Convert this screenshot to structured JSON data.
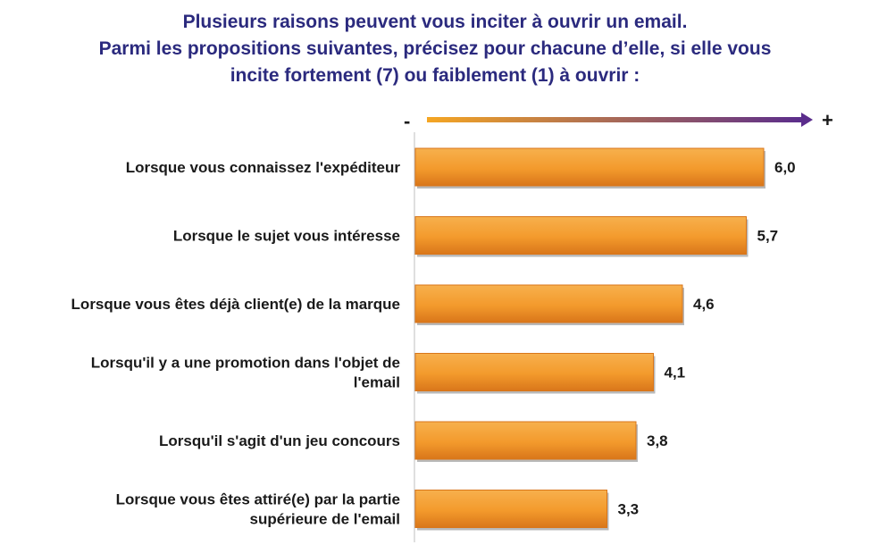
{
  "title_lines": [
    "Plusieurs raisons peuvent vous inciter à ouvrir un email.",
    "Parmi les propositions suivantes, précisez pour chacune d’elle, si elle vous",
    "incite fortement (7) ou faiblement (1) à ouvrir :"
  ],
  "scale": {
    "low": "-",
    "high": "+"
  },
  "colors": {
    "title": "#2b2a7e",
    "bar": "#f39a2c",
    "bar_dark": "#d9761a",
    "arrow_start": "#f5a623",
    "arrow_end": "#5b2d8c"
  },
  "chart_data": {
    "type": "bar",
    "orientation": "horizontal",
    "categories": [
      [
        "Lorsque vous connaissez l'expéditeur"
      ],
      [
        "Lorsque le sujet vous intéresse"
      ],
      [
        "Lorsque vous êtes déjà client(e) de la marque"
      ],
      [
        "Lorsqu'il y a une promotion dans l'objet de",
        "l'email"
      ],
      [
        "Lorsqu'il s'agit d'un jeu concours"
      ],
      [
        "Lorsque vous êtes attiré(e) par la partie",
        "supérieure de l'email"
      ]
    ],
    "values": [
      6.0,
      5.7,
      4.6,
      4.1,
      3.8,
      3.3
    ],
    "value_labels": [
      "6,0",
      "5,7",
      "4,6",
      "4,1",
      "3,8",
      "3,3"
    ],
    "xlim": [
      1,
      7
    ],
    "grid": false
  }
}
